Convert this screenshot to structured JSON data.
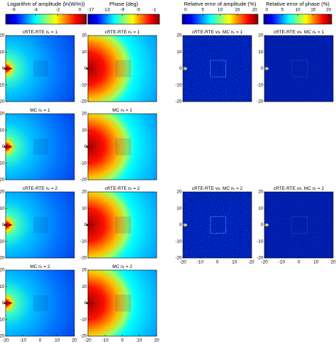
{
  "chart_data": [
    {
      "type": "colorbar",
      "title": "Logarithm of amplitude (ln(W/m))",
      "xlim": [
        -6.7,
        0.6
      ],
      "xticks": [
        -6,
        -4,
        -2,
        0
      ]
    },
    {
      "type": "colorbar",
      "title": "Phase (deg)",
      "xlim": [
        -17.7,
        0.4
      ],
      "xticks": [
        -17,
        -13,
        -9,
        -5,
        -1
      ]
    },
    {
      "type": "colorbar",
      "title": "Relative error of amplitude (%)",
      "xlim": [
        -1,
        21
      ],
      "xticks": [
        0,
        5,
        10,
        15,
        20
      ]
    },
    {
      "type": "colorbar",
      "title": "Relative error of phase (%)",
      "xlim": [
        -1,
        21
      ],
      "xticks": [
        0,
        5,
        10,
        15,
        20
      ]
    },
    {
      "type": "heatmap",
      "title": "cRTE-RTE n",
      "subscript": "r",
      "title_end": "= 1",
      "xlim": [
        -20,
        20
      ],
      "ylim": [
        -20,
        20
      ],
      "yticks": [
        -20,
        -10,
        0,
        10,
        20
      ]
    },
    {
      "type": "heatmap",
      "title": "MC n",
      "subscript": "r",
      "title_end": "= 1",
      "xlim": [
        -20,
        20
      ],
      "ylim": [
        -20,
        20
      ],
      "yticks": [
        -20,
        -10,
        0,
        10,
        20
      ]
    },
    {
      "type": "heatmap",
      "title": "cRTE-RTE n",
      "subscript": "r",
      "title_end": "= 2",
      "xlim": [
        -20,
        20
      ],
      "ylim": [
        -20,
        20
      ],
      "yticks": [
        -20,
        -10,
        0,
        10,
        20
      ]
    },
    {
      "type": "heatmap",
      "title": "MC n",
      "subscript": "r",
      "title_end": "= 2",
      "xlim": [
        -20,
        20
      ],
      "ylim": [
        -20,
        20
      ],
      "yticks": [
        -20,
        -10,
        0,
        10,
        20
      ],
      "xticks": [
        -20,
        -10,
        0,
        10,
        20
      ]
    },
    {
      "type": "heatmap",
      "title": "cRTE-RTE n",
      "subscript": "r",
      "title_end": "= 1",
      "xlim": [
        -20,
        20
      ],
      "ylim": [
        -20,
        20
      ],
      "yticks": [
        -20,
        -10,
        0,
        10,
        20
      ]
    },
    {
      "type": "heatmap",
      "title": "MC n",
      "subscript": "r",
      "title_end": "= 1",
      "xlim": [
        -20,
        20
      ],
      "ylim": [
        -20,
        20
      ],
      "yticks": [
        -20,
        -10,
        0,
        10,
        20
      ]
    },
    {
      "type": "heatmap",
      "title": "cRTE-RTE n",
      "subscript": "r",
      "title_end": "= 2",
      "xlim": [
        -20,
        20
      ],
      "ylim": [
        -20,
        20
      ],
      "yticks": [
        -20,
        -10,
        0,
        10,
        20
      ]
    },
    {
      "type": "heatmap",
      "title": "MC n",
      "subscript": "r",
      "title_end": "= 2",
      "xlim": [
        -20,
        20
      ],
      "ylim": [
        -20,
        20
      ],
      "yticks": [
        -20,
        -10,
        0,
        10,
        20
      ],
      "xticks": [
        -20,
        -10,
        0,
        10,
        20
      ]
    },
    {
      "type": "heatmap",
      "title": "cRTE-RTE vs. MC n",
      "subscript": "r",
      "title_end": "= 1",
      "xlim": [
        -20,
        20
      ],
      "ylim": [
        -20,
        20
      ],
      "yticks": [
        -20,
        -10,
        0,
        10,
        20
      ]
    },
    {
      "type": "heatmap",
      "title": "cRTE-RTE vs. MC n",
      "subscript": "r",
      "title_end": "= 2",
      "xlim": [
        -20,
        20
      ],
      "ylim": [
        -20,
        20
      ],
      "yticks": [
        -20,
        -10,
        0,
        10,
        20
      ],
      "xticks": [
        -20,
        -10,
        0,
        10,
        20
      ]
    },
    {
      "type": "heatmap",
      "title": "cRTE-RTE vs. MC n",
      "subscript": "r",
      "title_end": "= 1",
      "xlim": [
        -20,
        20
      ],
      "ylim": [
        -20,
        20
      ],
      "yticks": [
        -20,
        -10,
        0,
        10,
        20
      ]
    },
    {
      "type": "heatmap",
      "title": "cRTE-RTE vs. MC n",
      "subscript": "r",
      "title_end": "= 2",
      "xlim": [
        -20,
        20
      ],
      "ylim": [
        -20,
        20
      ],
      "yticks": [
        -20,
        -10,
        0,
        10,
        20
      ],
      "xticks": [
        -20,
        -10,
        0,
        10,
        20
      ]
    }
  ]
}
